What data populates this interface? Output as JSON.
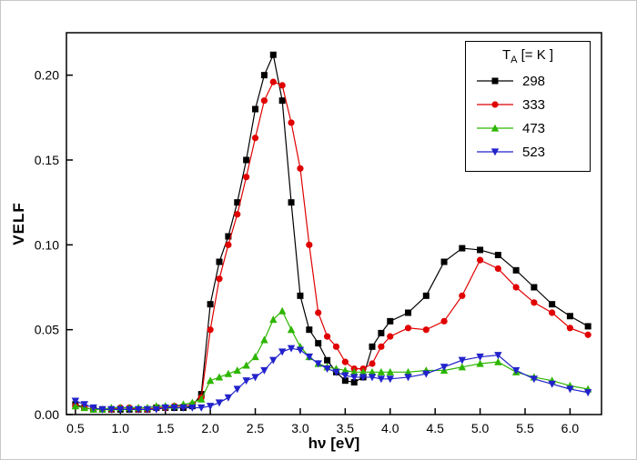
{
  "chart_data": {
    "type": "line",
    "title": "",
    "xlabel": "hν  [eV]",
    "ylabel": "VELF",
    "xlim": [
      0.4,
      6.35
    ],
    "ylim": [
      0,
      0.225
    ],
    "grid": false,
    "legend_position": "top-right",
    "x_ticks": [
      0.5,
      1.0,
      1.5,
      2.0,
      2.5,
      3.0,
      3.5,
      4.0,
      4.5,
      5.0,
      5.5,
      6.0
    ],
    "x_tick_labels": [
      "0.5",
      "1.0",
      "1.5",
      "2.0",
      "2.5",
      "3.0",
      "3.5",
      "4.0",
      "4.5",
      "5.0",
      "5.5",
      "6.0"
    ],
    "y_ticks": [
      0.0,
      0.05,
      0.1,
      0.15,
      0.2
    ],
    "y_tick_labels": [
      "0.00",
      "0.05",
      "0.10",
      "0.15",
      "0.20"
    ],
    "x": [
      0.5,
      0.6,
      0.7,
      0.8,
      0.9,
      1.0,
      1.1,
      1.2,
      1.3,
      1.4,
      1.5,
      1.6,
      1.7,
      1.8,
      1.9,
      2.0,
      2.1,
      2.2,
      2.3,
      2.4,
      2.5,
      2.6,
      2.7,
      2.8,
      2.9,
      3.0,
      3.1,
      3.2,
      3.3,
      3.4,
      3.5,
      3.6,
      3.7,
      3.8,
      3.9,
      4.0,
      4.2,
      4.4,
      4.6,
      4.8,
      5.0,
      5.2,
      5.4,
      5.6,
      5.8,
      6.0,
      6.2
    ],
    "series": [
      {
        "name": "298",
        "color": "#000000",
        "marker": "square",
        "values": [
          0.006,
          0.004,
          0.003,
          0.003,
          0.003,
          0.003,
          0.003,
          0.003,
          0.003,
          0.004,
          0.004,
          0.004,
          0.004,
          0.005,
          0.012,
          0.065,
          0.09,
          0.105,
          0.125,
          0.15,
          0.18,
          0.2,
          0.212,
          0.185,
          0.125,
          0.07,
          0.05,
          0.042,
          0.032,
          0.025,
          0.02,
          0.019,
          0.022,
          0.04,
          0.048,
          0.055,
          0.06,
          0.07,
          0.09,
          0.098,
          0.097,
          0.094,
          0.085,
          0.075,
          0.065,
          0.058,
          0.052
        ]
      },
      {
        "name": "333",
        "color": "#e00000",
        "marker": "circle",
        "values": [
          0.005,
          0.004,
          0.003,
          0.003,
          0.003,
          0.004,
          0.004,
          0.003,
          0.003,
          0.004,
          0.004,
          0.005,
          0.005,
          0.006,
          0.01,
          0.05,
          0.08,
          0.1,
          0.118,
          0.14,
          0.163,
          0.185,
          0.196,
          0.194,
          0.172,
          0.145,
          0.1,
          0.06,
          0.046,
          0.04,
          0.031,
          0.027,
          0.027,
          0.03,
          0.04,
          0.046,
          0.051,
          0.05,
          0.055,
          0.07,
          0.091,
          0.086,
          0.075,
          0.066,
          0.06,
          0.051,
          0.047
        ]
      },
      {
        "name": "473",
        "color": "#2db600",
        "marker": "triangle-up",
        "values": [
          0.005,
          0.004,
          0.003,
          0.003,
          0.004,
          0.004,
          0.004,
          0.004,
          0.004,
          0.005,
          0.005,
          0.005,
          0.006,
          0.007,
          0.009,
          0.02,
          0.022,
          0.024,
          0.026,
          0.029,
          0.034,
          0.044,
          0.056,
          0.061,
          0.05,
          0.04,
          0.034,
          0.03,
          0.028,
          0.027,
          0.026,
          0.025,
          0.025,
          0.025,
          0.025,
          0.025,
          0.025,
          0.026,
          0.026,
          0.028,
          0.03,
          0.031,
          0.025,
          0.022,
          0.02,
          0.017,
          0.015
        ]
      },
      {
        "name": "523",
        "color": "#2222cc",
        "marker": "triangle-down",
        "values": [
          0.008,
          0.006,
          0.004,
          0.003,
          0.003,
          0.003,
          0.003,
          0.003,
          0.003,
          0.003,
          0.004,
          0.004,
          0.004,
          0.004,
          0.004,
          0.005,
          0.007,
          0.01,
          0.015,
          0.02,
          0.022,
          0.026,
          0.032,
          0.037,
          0.039,
          0.038,
          0.034,
          0.03,
          0.027,
          0.025,
          0.023,
          0.022,
          0.022,
          0.022,
          0.021,
          0.021,
          0.022,
          0.024,
          0.028,
          0.032,
          0.034,
          0.035,
          0.026,
          0.021,
          0.018,
          0.015,
          0.013
        ]
      }
    ]
  },
  "axes": {
    "xlabel": "hν  [eV]",
    "ylabel": "VELF"
  },
  "legend": {
    "title_t": "T",
    "title_sub": "A",
    "title_rest": " [= K ]"
  }
}
